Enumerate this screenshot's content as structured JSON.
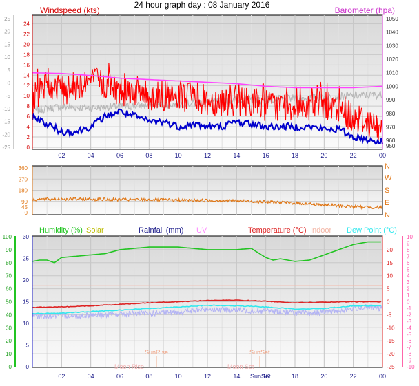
{
  "title": "24 hour graph day : 08 January 2016",
  "x_ticks": [
    "02",
    "04",
    "06",
    "08",
    "10",
    "12",
    "14",
    "16",
    "18",
    "20",
    "22",
    "00"
  ],
  "colors": {
    "windspeed_label": "#d40000",
    "barometer_label": "#cc33cc",
    "gust": "#ff0000",
    "avg_wind": "#0000cc",
    "barometer": "#ff44ff",
    "pressure_grey": "#b8b8b8",
    "direction": "#e07818",
    "humidity": "#22c422",
    "temperature": "#dd2222",
    "dew_point": "#33e8ee",
    "indoor": "#f4b8a8",
    "solar_lilac": "#b4b4f4",
    "rain_axis": "#2222cc",
    "uv_axis": "#ff66aa"
  },
  "chart_data": [
    {
      "type": "line",
      "panel": "wind",
      "title": "24 hour graph day : 08 January 2016",
      "left_axis_label": "Windspeed (kts)",
      "right_axis_label": "Barometer (hpa)",
      "left_ticks": [
        0,
        2,
        4,
        6,
        8,
        10,
        12,
        14,
        16,
        18,
        20,
        22,
        24
      ],
      "outer_left_ticks": [
        -25,
        -20,
        -15,
        -10,
        -5,
        0,
        5,
        10,
        15,
        20,
        25
      ],
      "right_ticks": [
        950,
        960,
        970,
        980,
        990,
        1000,
        1010,
        1020,
        1030,
        1040,
        1050
      ],
      "ylim": [
        0,
        25
      ],
      "ylim_right": [
        955,
        1050
      ],
      "grid": true,
      "series": [
        {
          "name": "Gust",
          "color": "#ff0000",
          "x": [
            0,
            1,
            2,
            3,
            4,
            5,
            6,
            7,
            8,
            9,
            10,
            11,
            12,
            13,
            14,
            15,
            16,
            17,
            18,
            19,
            20,
            21,
            22,
            23,
            24
          ],
          "y": [
            9,
            13,
            11,
            12,
            13,
            12,
            11,
            11,
            10,
            10,
            9,
            10,
            9,
            9,
            9,
            9,
            8,
            8,
            8,
            8,
            8,
            7,
            6,
            5,
            3
          ],
          "peak_y": [
            15,
            16,
            14,
            15,
            16,
            17,
            15,
            15,
            14,
            13,
            14,
            13,
            15,
            12,
            14,
            13,
            13,
            12,
            12,
            12,
            13,
            12,
            9,
            8,
            6
          ]
        },
        {
          "name": "Average wind",
          "color": "#0000cc",
          "x": [
            0,
            1,
            2,
            3,
            4,
            5,
            6,
            7,
            8,
            9,
            10,
            11,
            12,
            13,
            14,
            15,
            16,
            17,
            18,
            19,
            20,
            21,
            22,
            23,
            24
          ],
          "y": [
            6,
            4.5,
            3,
            3,
            4,
            6,
            7,
            6,
            5,
            5,
            4,
            4.5,
            4,
            4,
            5,
            4.5,
            4,
            4,
            4,
            4,
            3.5,
            3.5,
            2,
            1.5,
            1
          ]
        },
        {
          "name": "Barometer",
          "color": "#ff44ff",
          "x": [
            0,
            2,
            4,
            6,
            8,
            10,
            12,
            14,
            16,
            18,
            20,
            22,
            24
          ],
          "y": [
            1010,
            1009.5,
            1008,
            1006,
            1005,
            1004,
            1003,
            1002,
            1000,
            999,
            999,
            999,
            1000
          ]
        },
        {
          "name": "Pressure trace",
          "color": "#b8b8b8",
          "x": [
            0,
            2,
            4,
            6,
            8,
            10,
            12,
            14,
            16,
            18,
            20,
            22,
            24
          ],
          "y": [
            982,
            985,
            984,
            985,
            986,
            987,
            988,
            990,
            990,
            991,
            992,
            993,
            994
          ]
        }
      ]
    },
    {
      "type": "line",
      "panel": "direction",
      "left_ticks": [
        0,
        45,
        90,
        180,
        270,
        360
      ],
      "right_labels": [
        "N",
        "W",
        "S",
        "E",
        "N"
      ],
      "ylim": [
        0,
        360
      ],
      "grid": true,
      "series": [
        {
          "name": "Wind direction",
          "color": "#e07818",
          "x": [
            0,
            2,
            4,
            6,
            8,
            10,
            12,
            14,
            16,
            18,
            20,
            22,
            24
          ],
          "y": [
            105,
            110,
            108,
            104,
            103,
            100,
            98,
            96,
            86,
            78,
            62,
            48,
            40
          ]
        }
      ]
    },
    {
      "type": "line",
      "panel": "climate",
      "legend": [
        "Humidity (%)",
        "Solar",
        "Rainfall (mm)",
        "UV",
        "Temperature (°C)",
        "Indoor",
        "Dew Point (°C)"
      ],
      "legend_colors": [
        "#22c422",
        "#bbbb00",
        "#1a1a88",
        "#ff88ff",
        "#dd2222",
        "#f4b8a8",
        "#33e8ee"
      ],
      "humidity_ticks": [
        0,
        10,
        20,
        30,
        40,
        50,
        60,
        70,
        80,
        90,
        100
      ],
      "rain_ticks": [
        0,
        5,
        10,
        15,
        20,
        25,
        30
      ],
      "temp_ticks": [
        -25,
        -20,
        -15,
        -10,
        -5,
        0,
        5,
        10,
        15,
        20
      ],
      "uv_ticks": [
        -10,
        -9,
        -8,
        -7,
        -6,
        -5,
        -4,
        -3,
        -2,
        -1,
        0,
        1,
        2,
        3,
        4,
        5,
        6,
        7,
        8,
        9,
        10
      ],
      "ylim_humidity": [
        0,
        100
      ],
      "annotations": [
        "SunRise",
        "SunSet",
        "Moon Rise",
        "Moon Set",
        "SunSet"
      ],
      "grid": true,
      "series": [
        {
          "name": "Humidity (%)",
          "color": "#22c422",
          "x": [
            0,
            0.5,
            1,
            1.5,
            2,
            3,
            4,
            5,
            6,
            8,
            10,
            12,
            14,
            15,
            16,
            16.5,
            17,
            17.5,
            18,
            19,
            20,
            21,
            22,
            23,
            24
          ],
          "y": [
            81,
            82,
            82,
            80,
            84,
            85,
            86,
            87,
            90,
            92,
            92,
            90,
            90,
            91,
            84,
            82,
            83,
            82,
            81,
            82,
            86,
            90,
            94,
            96,
            96
          ]
        },
        {
          "name": "Temperature (°C)",
          "color": "#dd2222",
          "x": [
            0,
            2,
            4,
            6,
            8,
            10,
            12,
            14,
            16,
            18,
            20,
            22,
            24
          ],
          "y": [
            -2.2,
            -2.0,
            -1.6,
            -1.0,
            -0.4,
            0,
            0.5,
            0.6,
            0.2,
            -0.4,
            -0.2,
            0,
            0
          ]
        },
        {
          "name": "Dew Point (°C)",
          "color": "#33e8ee",
          "x": [
            0,
            2,
            4,
            6,
            8,
            10,
            12,
            14,
            16,
            18,
            20,
            22,
            24
          ],
          "y": [
            -4.6,
            -4.4,
            -3.8,
            -3.2,
            -2.6,
            -2.0,
            -1.4,
            -1.6,
            -2.0,
            -2.8,
            -2.6,
            -1.6,
            -1.5
          ]
        },
        {
          "name": "Indoor",
          "color": "#f4b8a8",
          "x": [
            0,
            24
          ],
          "y": [
            6.1,
            6.2
          ]
        },
        {
          "name": "Solar",
          "color": "#b4b4f4",
          "x": [
            0,
            1,
            2,
            3,
            4,
            5,
            6,
            7,
            8,
            9,
            10,
            11,
            12,
            13,
            14,
            15,
            16,
            17,
            18,
            19,
            20,
            21,
            22,
            23,
            24
          ],
          "y": [
            -5.8,
            -5.5,
            -5.3,
            -5.5,
            -5.0,
            -5.2,
            -4.8,
            -4.5,
            -4.6,
            -4.2,
            -4.0,
            -3.5,
            -2.8,
            -3.0,
            -3.2,
            -3.5,
            -3.6,
            -3.8,
            -4.2,
            -4.5,
            -4.0,
            -3.5,
            -2.5,
            -2.0,
            -2.8
          ]
        }
      ]
    }
  ]
}
